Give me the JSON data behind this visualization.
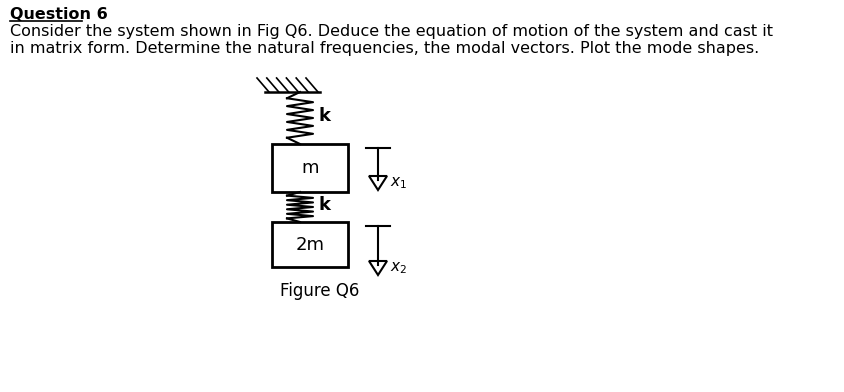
{
  "title": "Question 6",
  "line1": "Consider the system shown in Fig Q6. Deduce the equation of motion of the system and cast it",
  "line2": "in matrix form. Determine the natural frequencies, the modal vectors. Plot the mode shapes.",
  "figure_label": "Figure Q6",
  "bg_color": "#ffffff",
  "text_color": "#000000",
  "mass1_label": "m",
  "mass2_label": "2m",
  "spring1_label": "k",
  "spring2_label": "k",
  "fig_width": 8.44,
  "fig_height": 3.92,
  "dpi": 100
}
